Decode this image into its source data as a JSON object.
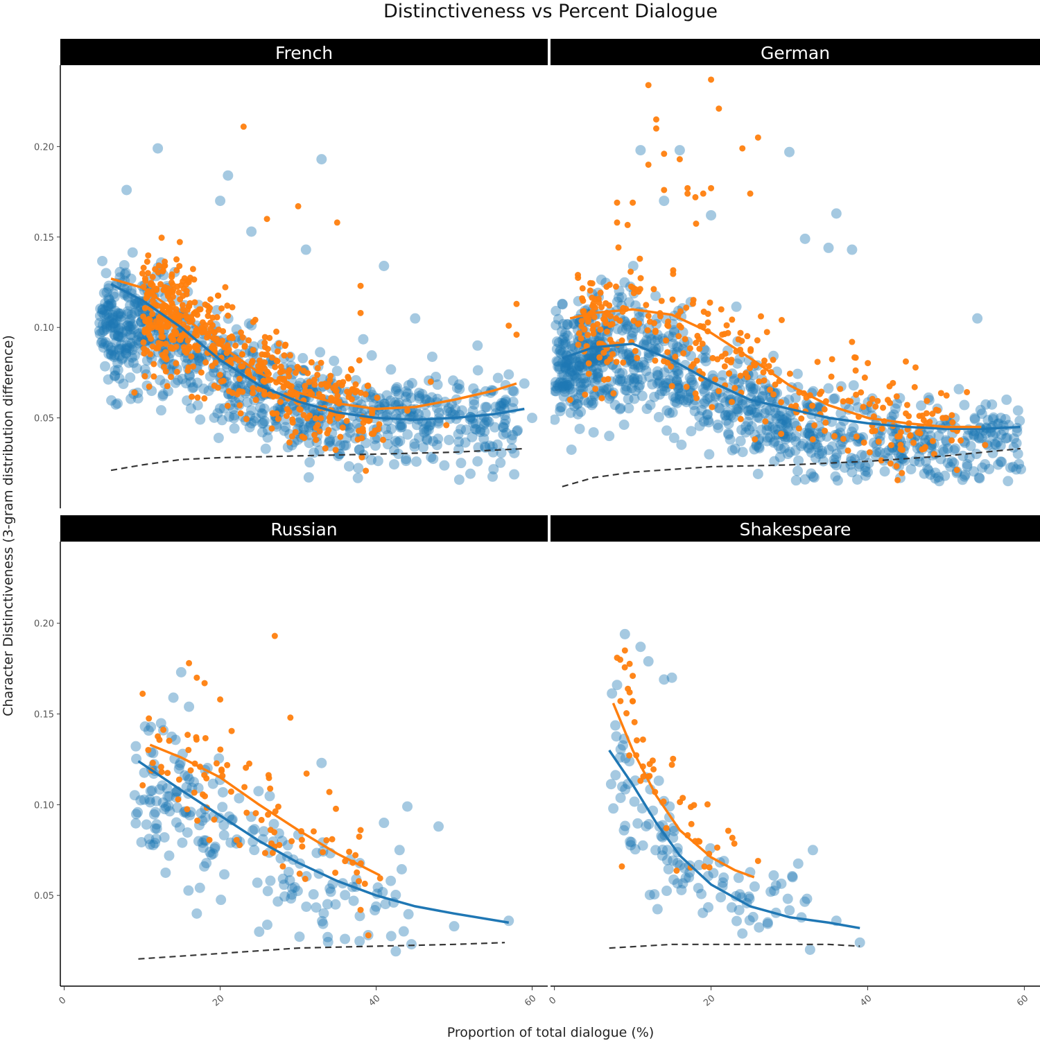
{
  "chart_data": {
    "type": "scatter",
    "title": "Distinctiveness vs Percent Dialogue",
    "xlabel": "Proportion of total dialogue (%)",
    "ylabel": "Character Distinctiveness (3-gram distribution difference)",
    "x_ticks": [
      0,
      20,
      40,
      60
    ],
    "x_tick_labels": [
      "0",
      "20",
      "40",
      "60"
    ],
    "y_ticks": [
      0.05,
      0.1,
      0.15,
      0.2
    ],
    "y_tick_labels": [
      "0.05",
      "0.10",
      "0.15",
      "0.20"
    ],
    "xlim": [
      -0.5,
      62
    ],
    "ylim": [
      0.0,
      0.245
    ],
    "grid": false,
    "legend": "none",
    "colors": {
      "blue": "#1f77b4",
      "orange": "#ff7f0e",
      "baseline": "#333333",
      "strip_bg": "#000000"
    },
    "panels": [
      {
        "name": "French",
        "n_blue": 900,
        "n_orange": 520,
        "blue_cloud": [
          [
            5.5,
            0.1
          ],
          [
            12,
            0.1
          ],
          [
            20,
            0.075
          ],
          [
            28,
            0.06
          ],
          [
            40,
            0.05
          ],
          [
            58,
            0.045
          ]
        ],
        "orange_cloud": [
          [
            11,
            0.11
          ],
          [
            18,
            0.1
          ],
          [
            24,
            0.08
          ],
          [
            32,
            0.06
          ],
          [
            40,
            0.05
          ]
        ],
        "blue_outliers": [
          [
            12,
            0.199
          ],
          [
            8,
            0.176
          ],
          [
            21,
            0.184
          ],
          [
            20,
            0.17
          ],
          [
            33,
            0.193
          ],
          [
            24,
            0.153
          ],
          [
            31,
            0.143
          ],
          [
            41,
            0.134
          ],
          [
            45,
            0.105
          ],
          [
            53,
            0.09
          ],
          [
            57,
            0.074
          ],
          [
            59,
            0.069
          ],
          [
            55,
            0.065
          ],
          [
            6,
            0.1
          ],
          [
            54,
            0.056
          ],
          [
            48,
            0.047
          ],
          [
            60,
            0.05
          ],
          [
            55,
            0.031
          ],
          [
            53,
            0.026
          ],
          [
            38,
            0.04
          ]
        ],
        "orange_outliers": [
          [
            23,
            0.211
          ],
          [
            30,
            0.167
          ],
          [
            26,
            0.16
          ],
          [
            35,
            0.158
          ],
          [
            38,
            0.123
          ],
          [
            38,
            0.108
          ],
          [
            58,
            0.113
          ],
          [
            57,
            0.101
          ],
          [
            58,
            0.096
          ],
          [
            9,
            0.064
          ],
          [
            47,
            0.07
          ],
          [
            44,
            0.054
          ],
          [
            49,
            0.046
          ]
        ],
        "fit_blue": {
          "x": [
            6,
            10,
            15,
            20,
            25,
            30,
            35,
            40,
            45,
            50,
            55,
            59
          ],
          "y": [
            0.124,
            0.115,
            0.1,
            0.082,
            0.068,
            0.059,
            0.053,
            0.05,
            0.049,
            0.05,
            0.052,
            0.055
          ]
        },
        "fit_orange": {
          "x": [
            6,
            10,
            15,
            20,
            25,
            30,
            35,
            40,
            45,
            50,
            55,
            58
          ],
          "y": [
            0.127,
            0.122,
            0.107,
            0.09,
            0.075,
            0.064,
            0.058,
            0.055,
            0.056,
            0.06,
            0.065,
            0.069
          ]
        },
        "baseline": {
          "x": [
            6,
            10,
            15,
            20,
            30,
            40,
            50,
            59
          ],
          "y": [
            0.021,
            0.024,
            0.027,
            0.028,
            0.029,
            0.03,
            0.031,
            0.033
          ]
        }
      },
      {
        "name": "German",
        "n_blue": 950,
        "n_orange": 330,
        "blue_cloud": [
          [
            1,
            0.08
          ],
          [
            10,
            0.09
          ],
          [
            15,
            0.075
          ],
          [
            22,
            0.06
          ],
          [
            30,
            0.045
          ],
          [
            40,
            0.035
          ],
          [
            50,
            0.035
          ],
          [
            59,
            0.04
          ]
        ],
        "orange_cloud": [
          [
            4,
            0.1
          ],
          [
            10,
            0.11
          ],
          [
            15,
            0.1
          ],
          [
            22,
            0.085
          ],
          [
            30,
            0.065
          ],
          [
            40,
            0.05
          ],
          [
            52,
            0.045
          ]
        ],
        "blue_outliers": [
          [
            11,
            0.198
          ],
          [
            16,
            0.198
          ],
          [
            30,
            0.197
          ],
          [
            14,
            0.17
          ],
          [
            20,
            0.162
          ],
          [
            36,
            0.163
          ],
          [
            32,
            0.149
          ],
          [
            35,
            0.144
          ],
          [
            38,
            0.143
          ],
          [
            54,
            0.105
          ],
          [
            1,
            0.113
          ],
          [
            3,
            0.052
          ],
          [
            5,
            0.042
          ],
          [
            7,
            0.04
          ],
          [
            59,
            0.036
          ],
          [
            57,
            0.05
          ],
          [
            58,
            0.046
          ],
          [
            51,
            0.025
          ],
          [
            32,
            0.016
          ],
          [
            26,
            0.019
          ],
          [
            38,
            0.02
          ],
          [
            40,
            0.02
          ]
        ],
        "orange_outliers": [
          [
            12,
            0.234
          ],
          [
            20,
            0.237
          ],
          [
            21,
            0.221
          ],
          [
            13,
            0.215
          ],
          [
            13,
            0.21
          ],
          [
            24,
            0.199
          ],
          [
            26,
            0.205
          ],
          [
            14,
            0.196
          ],
          [
            16,
            0.193
          ],
          [
            12,
            0.19
          ],
          [
            14,
            0.176
          ],
          [
            17,
            0.177
          ],
          [
            17,
            0.174
          ],
          [
            18,
            0.172
          ],
          [
            19,
            0.174
          ],
          [
            20,
            0.177
          ],
          [
            25,
            0.174
          ],
          [
            8,
            0.169
          ],
          [
            10,
            0.169
          ],
          [
            8,
            0.158
          ],
          [
            3,
            0.129
          ],
          [
            38,
            0.092
          ],
          [
            46,
            0.067
          ],
          [
            50,
            0.05
          ],
          [
            55,
            0.035
          ],
          [
            2,
            0.06
          ]
        ],
        "fit_blue": {
          "x": [
            1,
            5,
            10,
            15,
            20,
            25,
            30,
            35,
            40,
            45,
            50,
            55,
            59.5
          ],
          "y": [
            0.083,
            0.089,
            0.091,
            0.082,
            0.07,
            0.06,
            0.055,
            0.05,
            0.047,
            0.045,
            0.044,
            0.044,
            0.045
          ]
        },
        "fit_orange": {
          "x": [
            2,
            5,
            10,
            15,
            20,
            25,
            30,
            35,
            40,
            45,
            50,
            54.5
          ],
          "y": [
            0.105,
            0.108,
            0.11,
            0.107,
            0.097,
            0.083,
            0.068,
            0.057,
            0.05,
            0.047,
            0.045,
            0.045
          ]
        },
        "baseline": {
          "x": [
            1,
            5,
            10,
            20,
            30,
            40,
            50,
            59.5
          ],
          "y": [
            0.012,
            0.017,
            0.02,
            0.023,
            0.024,
            0.026,
            0.029,
            0.033
          ]
        }
      },
      {
        "name": "Russian",
        "n_blue": 200,
        "n_orange": 85,
        "blue_cloud": [
          [
            10,
            0.115
          ],
          [
            15,
            0.1
          ],
          [
            20,
            0.085
          ],
          [
            25,
            0.075
          ],
          [
            30,
            0.06
          ],
          [
            36,
            0.05
          ],
          [
            44,
            0.04
          ]
        ],
        "orange_cloud": [
          [
            11,
            0.13
          ],
          [
            16,
            0.12
          ],
          [
            20,
            0.11
          ],
          [
            25,
            0.095
          ],
          [
            30,
            0.08
          ],
          [
            36,
            0.07
          ],
          [
            40,
            0.062
          ]
        ],
        "blue_outliers": [
          [
            15,
            0.173
          ],
          [
            14,
            0.159
          ],
          [
            16,
            0.154
          ],
          [
            44,
            0.099
          ],
          [
            41,
            0.09
          ],
          [
            48,
            0.088
          ],
          [
            43,
            0.075
          ],
          [
            50,
            0.033
          ],
          [
            57,
            0.036
          ],
          [
            25,
            0.03
          ],
          [
            36,
            0.026
          ],
          [
            17,
            0.04
          ],
          [
            33,
            0.123
          ]
        ],
        "orange_outliers": [
          [
            27,
            0.193
          ],
          [
            16,
            0.178
          ],
          [
            17,
            0.17
          ],
          [
            18,
            0.167
          ],
          [
            20,
            0.158
          ],
          [
            29,
            0.148
          ],
          [
            34,
            0.107
          ],
          [
            38,
            0.086
          ],
          [
            37,
            0.068
          ],
          [
            39,
            0.028
          ],
          [
            38,
            0.042
          ]
        ],
        "fit_blue": {
          "x": [
            9.5,
            15,
            20,
            25,
            30,
            35,
            40,
            45,
            50,
            57
          ],
          "y": [
            0.124,
            0.108,
            0.094,
            0.08,
            0.068,
            0.058,
            0.05,
            0.044,
            0.04,
            0.035
          ]
        },
        "fit_orange": {
          "x": [
            11,
            15,
            20,
            25,
            30,
            35,
            40.5
          ],
          "y": [
            0.133,
            0.126,
            0.115,
            0.1,
            0.086,
            0.073,
            0.061
          ]
        },
        "baseline": {
          "x": [
            9.5,
            20,
            30,
            40,
            50,
            56.5
          ],
          "y": [
            0.015,
            0.018,
            0.021,
            0.022,
            0.023,
            0.024
          ]
        }
      },
      {
        "name": "Shakespeare",
        "n_blue": 115,
        "n_orange": 45,
        "blue_cloud": [
          [
            8,
            0.12
          ],
          [
            10,
            0.1
          ],
          [
            13,
            0.085
          ],
          [
            16,
            0.07
          ],
          [
            20,
            0.06
          ],
          [
            26,
            0.05
          ],
          [
            32,
            0.04
          ]
        ],
        "orange_cloud": [
          [
            9,
            0.16
          ],
          [
            10,
            0.14
          ],
          [
            12,
            0.12
          ],
          [
            15,
            0.095
          ],
          [
            18,
            0.08
          ],
          [
            22,
            0.068
          ]
        ],
        "blue_outliers": [
          [
            9,
            0.194
          ],
          [
            11,
            0.187
          ],
          [
            12,
            0.179
          ],
          [
            14,
            0.169
          ],
          [
            15,
            0.17
          ],
          [
            8,
            0.166
          ],
          [
            33,
            0.075
          ],
          [
            28,
            0.061
          ],
          [
            39,
            0.024
          ],
          [
            24,
            0.029
          ],
          [
            36,
            0.036
          ]
        ],
        "orange_outliers": [
          [
            9,
            0.185
          ],
          [
            8,
            0.181
          ],
          [
            10,
            0.171
          ],
          [
            10,
            0.157
          ],
          [
            26,
            0.069
          ],
          [
            15,
            0.122
          ]
        ],
        "fit_blue": {
          "x": [
            7,
            10,
            13,
            16,
            20,
            25,
            30,
            35,
            39
          ],
          "y": [
            0.13,
            0.111,
            0.09,
            0.072,
            0.056,
            0.044,
            0.038,
            0.035,
            0.032
          ]
        },
        "fit_orange": {
          "x": [
            7.5,
            10,
            13,
            16,
            20,
            23,
            25.5
          ],
          "y": [
            0.156,
            0.13,
            0.105,
            0.086,
            0.071,
            0.064,
            0.06
          ]
        },
        "baseline": {
          "x": [
            7,
            15,
            20,
            25,
            30,
            35,
            39
          ],
          "y": [
            0.021,
            0.023,
            0.023,
            0.023,
            0.023,
            0.023,
            0.022
          ]
        }
      }
    ]
  }
}
